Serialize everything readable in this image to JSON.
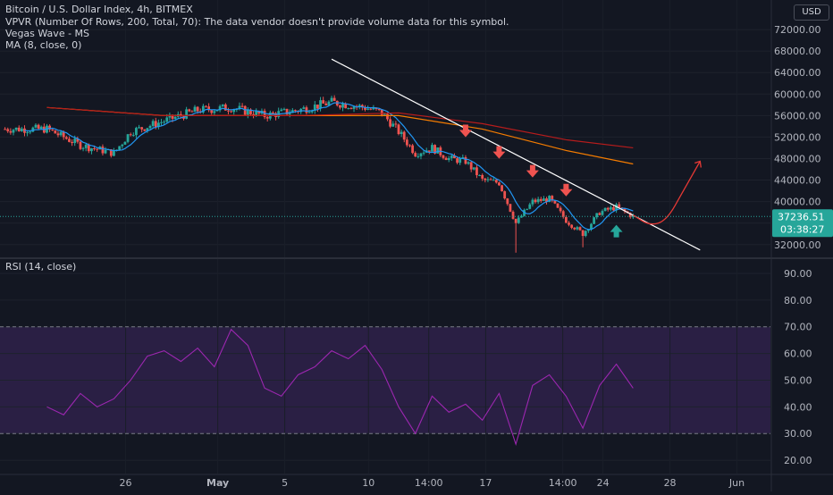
{
  "legend": {
    "title": "Bitcoin / U.S. Dollar Index, 4h, BITMEX",
    "vpvr": "VPVR (Number Of Rows, 200, Total, 70): The data vendor doesn't provide volume data for this symbol.",
    "vegas": "Vegas Wave - MS",
    "ma": "MA (8, close, 0)"
  },
  "currency_badge": "USD",
  "last_price": {
    "value": "37236.51",
    "countdown": "03:38:27"
  },
  "colors": {
    "background": "#131722",
    "up": "#26a69a",
    "down": "#ef5350",
    "ma_line": "#2196f3",
    "vegas_orange": "#f57c00",
    "vegas_red": "#b71c1c",
    "trendline": "#ffffff",
    "rsi_line": "#9c27b0",
    "rsi_band": "#2a1f44",
    "projection": "#e53935",
    "text": "#d1d4dc",
    "axis_text": "#b2b5be"
  },
  "icons": [
    "down-arrow-icon",
    "up-arrow-icon"
  ],
  "chart_data": [
    {
      "type": "candlestick",
      "title": "Bitcoin / U.S. Dollar Index, 4h, BITMEX",
      "y_ticks": [
        32000,
        36000,
        40000,
        44000,
        48000,
        52000,
        56000,
        60000,
        64000,
        68000,
        72000
      ],
      "y_tick_labels": [
        "32000.00",
        "36000.00",
        "40000.00",
        "44000.00",
        "48000.00",
        "52000.00",
        "56000.00",
        "60000.00",
        "64000.00",
        "68000.00",
        "72000.00"
      ],
      "ylim": [
        29800,
        77500
      ],
      "x_ticks": [
        "26",
        "May",
        "5",
        "10",
        "14:00",
        "17",
        "14:00",
        "24",
        "28",
        "Jun"
      ],
      "close_path": [
        [
          "Apr 21",
          53500
        ],
        [
          "Apr 23",
          50500
        ],
        [
          "Apr 25",
          49000
        ],
        [
          "Apr 26",
          53000
        ],
        [
          "Apr 28",
          55000
        ],
        [
          "Apr 30",
          57000
        ],
        [
          "May 2",
          57500
        ],
        [
          "May 4",
          56000
        ],
        [
          "May 6",
          57000
        ],
        [
          "May 8",
          58500
        ],
        [
          "May 10",
          57500
        ],
        [
          "May 11",
          56500
        ],
        [
          "May 12",
          53000
        ],
        [
          "May 13",
          49000
        ],
        [
          "May 14",
          50000
        ],
        [
          "May 15",
          48000
        ],
        [
          "May 16",
          47500
        ],
        [
          "May 17",
          44000
        ],
        [
          "May 18",
          43500
        ],
        [
          "May 19",
          36000
        ],
        [
          "May 20",
          40000
        ],
        [
          "May 21",
          40500
        ],
        [
          "May 22",
          36500
        ],
        [
          "May 23",
          34000
        ],
        [
          "May 24",
          38000
        ],
        [
          "May 25",
          39000
        ],
        [
          "May 26",
          37200
        ]
      ],
      "wick_lows": [
        [
          "May 19",
          30500
        ],
        [
          "May 23",
          31500
        ]
      ],
      "ma8_label": "MA (8, close, 0)",
      "vegas_wave": [
        {
          "line": "orange",
          "points": [
            [
              "Apr 21",
              57500
            ],
            [
              "Apr 28",
              56000
            ],
            [
              "May 6",
              56000
            ],
            [
              "May 12",
              56000
            ],
            [
              "May 17",
              53500
            ],
            [
              "May 22",
              49500
            ],
            [
              "May 26",
              47000
            ]
          ]
        },
        {
          "line": "red",
          "points": [
            [
              "Apr 21",
              57500
            ],
            [
              "Apr 28",
              56000
            ],
            [
              "May 6",
              56000
            ],
            [
              "May 12",
              56500
            ],
            [
              "May 17",
              54500
            ],
            [
              "May 22",
              51500
            ],
            [
              "May 26",
              50000
            ]
          ]
        }
      ],
      "trendline": [
        [
          "May 8",
          66500
        ],
        [
          "May 30",
          31000
        ]
      ],
      "resistance_arrows": [
        "May 16",
        "May 18",
        "May 20",
        "May 22"
      ],
      "support_arrow": "May 25",
      "projection_path": [
        [
          "May 26",
          37500
        ],
        [
          "May 27",
          35500
        ],
        [
          "May 28",
          36500
        ],
        [
          "May 29",
          42000
        ],
        [
          "May 30",
          47500
        ]
      ],
      "last_price": 37236.51
    },
    {
      "type": "line",
      "title": "RSI (14, close)",
      "y_ticks": [
        20,
        30,
        40,
        50,
        60,
        70,
        80,
        90
      ],
      "y_tick_labels": [
        "20.00",
        "30.00",
        "40.00",
        "50.00",
        "60.00",
        "70.00",
        "80.00",
        "90.00"
      ],
      "ylim": [
        15,
        95
      ],
      "band": [
        30,
        70
      ],
      "series": [
        {
          "name": "RSI (14, close)",
          "points": [
            [
              "Apr 21",
              40
            ],
            [
              "Apr 22",
              37
            ],
            [
              "Apr 23",
              45
            ],
            [
              "Apr 24",
              40
            ],
            [
              "Apr 25",
              43
            ],
            [
              "Apr 26",
              50
            ],
            [
              "Apr 27",
              59
            ],
            [
              "Apr 28",
              61
            ],
            [
              "Apr 29",
              57
            ],
            [
              "Apr 30",
              62
            ],
            [
              "May 1",
              55
            ],
            [
              "May 2",
              69
            ],
            [
              "May 3",
              63
            ],
            [
              "May 4",
              47
            ],
            [
              "May 5",
              44
            ],
            [
              "May 6",
              52
            ],
            [
              "May 7",
              55
            ],
            [
              "May 8",
              61
            ],
            [
              "May 9",
              58
            ],
            [
              "May 10",
              63
            ],
            [
              "May 11",
              54
            ],
            [
              "May 12",
              40
            ],
            [
              "May 13",
              30
            ],
            [
              "May 14",
              44
            ],
            [
              "May 15",
              38
            ],
            [
              "May 16",
              41
            ],
            [
              "May 17",
              35
            ],
            [
              "May 18",
              45
            ],
            [
              "May 19",
              26
            ],
            [
              "May 20",
              48
            ],
            [
              "May 21",
              52
            ],
            [
              "May 22",
              44
            ],
            [
              "May 23",
              32
            ],
            [
              "May 24",
              48
            ],
            [
              "May 25",
              56
            ],
            [
              "May 26",
              47
            ]
          ]
        }
      ]
    }
  ]
}
